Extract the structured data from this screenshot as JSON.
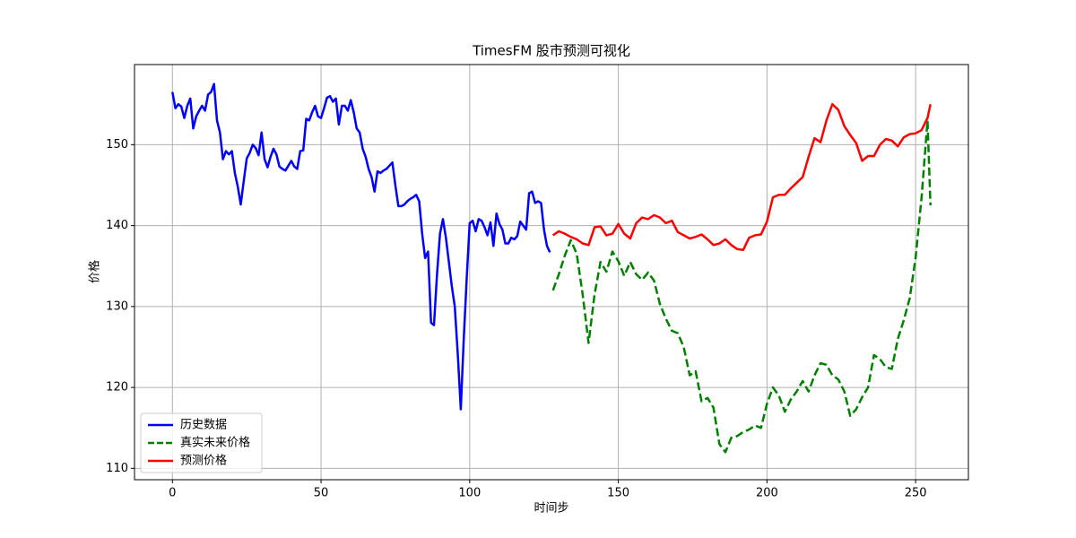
{
  "chart_data": {
    "type": "line",
    "title": "TimesFM 股市预测可视化",
    "x_label": "时间步",
    "y_label": "价格",
    "xlim": [
      -12.75,
      267.75
    ],
    "ylim": [
      108.6,
      159.9
    ],
    "xticks": [
      0,
      50,
      100,
      150,
      200,
      250
    ],
    "yticks": [
      110,
      120,
      130,
      140,
      150
    ],
    "grid": true,
    "legend": "lower left",
    "series": [
      {
        "name": "历史数据",
        "color": "#0000ff",
        "style": "solid",
        "x": [
          0,
          1,
          2,
          3,
          4,
          5,
          6,
          7,
          8,
          9,
          10,
          11,
          12,
          13,
          14,
          15,
          16,
          17,
          18,
          19,
          20,
          21,
          22,
          23,
          24,
          25,
          26,
          27,
          28,
          29,
          30,
          31,
          32,
          33,
          34,
          35,
          36,
          37,
          38,
          39,
          40,
          41,
          42,
          43,
          44,
          45,
          46,
          47,
          48,
          49,
          50,
          51,
          52,
          53,
          54,
          55,
          56,
          57,
          58,
          59,
          60,
          61,
          62,
          63,
          64,
          65,
          66,
          67,
          68,
          69,
          70,
          71,
          72,
          73,
          74,
          75,
          76,
          77,
          78,
          79,
          80,
          81,
          82,
          83,
          84,
          85,
          86,
          87,
          88,
          89,
          90,
          91,
          92,
          93,
          94,
          95,
          96,
          97,
          98,
          99,
          100,
          101,
          102,
          103,
          104,
          105,
          106,
          107,
          108,
          109,
          110,
          111,
          112,
          113,
          114,
          115,
          116,
          117,
          118,
          119,
          120,
          121,
          122,
          123,
          124,
          125,
          126,
          127
        ],
        "values": [
          156.5,
          154.5,
          155,
          154.7,
          153.3,
          154.8,
          155.7,
          152,
          153.5,
          154.2,
          154.8,
          154.2,
          156.2,
          156.5,
          157.5,
          153,
          151.5,
          148.2,
          149.2,
          148.8,
          149.2,
          146.5,
          144.8,
          142.6,
          145.5,
          148.3,
          149,
          150,
          149.6,
          148.7,
          151.5,
          148.2,
          147.2,
          148.5,
          149.5,
          148.8,
          147.3,
          147,
          146.8,
          147.4,
          148,
          147.3,
          147,
          149.2,
          149.3,
          153.2,
          153,
          154,
          154.8,
          153.5,
          153.3,
          154.5,
          155.8,
          156,
          155.3,
          155.7,
          152.5,
          154.8,
          154.8,
          154.2,
          155.5,
          154,
          152,
          151.5,
          149.5,
          148.5,
          147,
          146,
          144.2,
          146.7,
          146.5,
          146.8,
          147,
          147.4,
          147.8,
          145,
          142.4,
          142.4,
          142.6,
          143,
          143.3,
          143.5,
          143.8,
          143,
          139,
          136,
          136.8,
          128,
          127.7,
          134,
          139,
          140.8,
          138.5,
          135.5,
          132.5,
          130,
          124,
          117.3,
          126,
          133.5,
          140.3,
          140.6,
          139.3,
          140.8,
          140.6,
          139.8,
          138.8,
          140.4,
          137.5,
          141.5,
          140.2,
          139.5,
          137.8,
          137.8,
          138.5,
          138.3,
          138.7,
          140.5,
          140,
          139.5,
          144,
          144.2,
          142.8,
          143,
          142.8,
          139.5,
          137.5,
          136.7
        ]
      },
      {
        "name": "真实未来价格",
        "color": "#008000",
        "style": "dashed",
        "x": [
          128,
          130,
          132,
          134,
          136,
          138,
          140,
          142,
          144,
          146,
          148,
          150,
          152,
          154,
          156,
          158,
          160,
          162,
          164,
          166,
          168,
          170,
          172,
          174,
          176,
          178,
          180,
          182,
          184,
          186,
          188,
          190,
          192,
          194,
          196,
          198,
          200,
          202,
          204,
          206,
          208,
          210,
          212,
          214,
          216,
          218,
          220,
          222,
          224,
          226,
          228,
          230,
          232,
          234,
          236,
          238,
          240,
          242,
          244,
          246,
          248,
          250,
          252,
          254,
          255
        ],
        "values": [
          132,
          134,
          136.3,
          138.2,
          136.5,
          131.5,
          125.5,
          131.5,
          135.5,
          134.3,
          136.8,
          135.6,
          133.8,
          135.5,
          134,
          133.3,
          134.2,
          133.2,
          130.3,
          128.5,
          127,
          126.7,
          125,
          121.5,
          122,
          118.3,
          118.7,
          117.5,
          113,
          112,
          113.8,
          114,
          114.5,
          114.8,
          115.3,
          115,
          118,
          120,
          119,
          117,
          118.5,
          119.5,
          120.8,
          119.5,
          121.5,
          123,
          122.8,
          121.5,
          121,
          119.5,
          116.5,
          117.3,
          118.8,
          120,
          124,
          123.5,
          122.5,
          122.3,
          126,
          128.3,
          131,
          136,
          143.5,
          153,
          142.5
        ]
      },
      {
        "name": "预测价格",
        "color": "#ff0000",
        "style": "solid",
        "x": [
          128,
          130,
          132,
          134,
          136,
          138,
          140,
          142,
          144,
          146,
          148,
          150,
          152,
          154,
          156,
          158,
          160,
          162,
          164,
          166,
          168,
          170,
          172,
          174,
          176,
          178,
          180,
          182,
          184,
          186,
          188,
          190,
          192,
          194,
          196,
          198,
          200,
          202,
          204,
          206,
          208,
          210,
          212,
          214,
          216,
          218,
          220,
          222,
          224,
          226,
          228,
          230,
          232,
          234,
          236,
          238,
          240,
          242,
          244,
          246,
          248,
          250,
          252,
          254,
          255
        ],
        "values": [
          138.8,
          139.3,
          139,
          138.6,
          138.3,
          137.8,
          137.6,
          139.8,
          139.9,
          138.8,
          139,
          140.2,
          139,
          138.4,
          140.3,
          141,
          140.8,
          141.3,
          141,
          140.3,
          140.6,
          139.2,
          138.8,
          138.4,
          138.6,
          138.9,
          138.3,
          137.6,
          137.8,
          138.3,
          137.6,
          137.1,
          137,
          138.5,
          138.8,
          138.9,
          140.5,
          143.5,
          143.8,
          143.8,
          144.6,
          145.3,
          146,
          148.5,
          150.8,
          150.3,
          153,
          155,
          154.3,
          152.3,
          151.2,
          150.2,
          148,
          148.6,
          148.6,
          150,
          150.7,
          150.5,
          149.8,
          150.9,
          151.3,
          151.4,
          151.8,
          153.3,
          155
        ]
      }
    ]
  }
}
